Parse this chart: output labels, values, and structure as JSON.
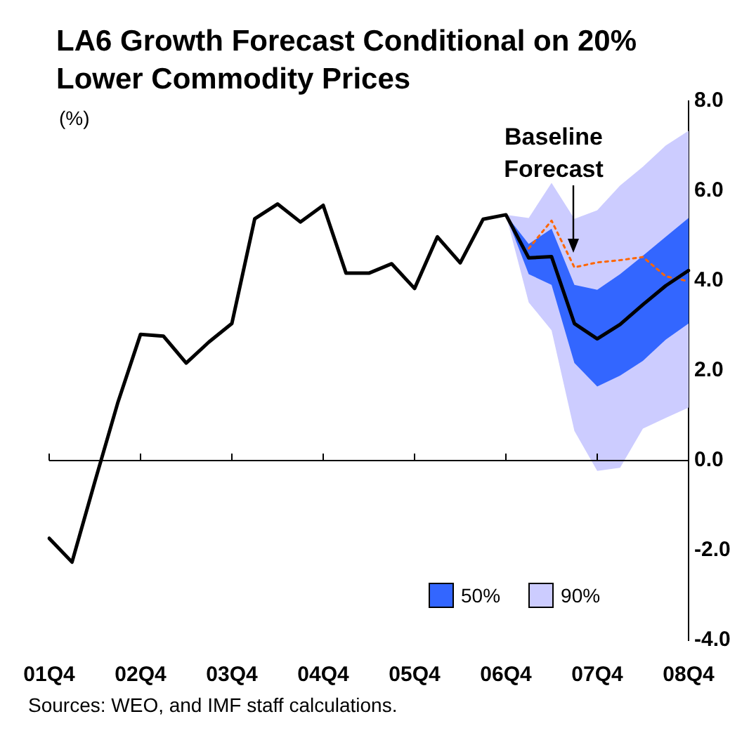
{
  "chart_data": {
    "type": "line",
    "title": "LA6 Growth Forecast Conditional on 20% Lower Commodity Prices",
    "ylabel": "(%)",
    "categories": [
      "01Q4",
      null,
      null,
      null,
      "02Q4",
      null,
      null,
      null,
      "03Q4",
      null,
      null,
      null,
      "04Q4",
      null,
      null,
      null,
      "05Q4",
      null,
      null,
      null,
      "06Q4",
      null,
      null,
      null,
      "07Q4",
      null,
      null,
      null,
      "08Q4"
    ],
    "series": [
      {
        "type": "line",
        "color": "#000000",
        "line_style": "solid",
        "values": [
          -1.73,
          -2.26,
          -0.47,
          1.28,
          2.81,
          2.77,
          2.17,
          2.64,
          3.05,
          5.38,
          5.71,
          5.31,
          5.68,
          4.17,
          4.17,
          4.38,
          3.83,
          4.98,
          4.4,
          5.37,
          5.47,
          4.51,
          4.54,
          3.05,
          2.71,
          3.03,
          3.47,
          3.89,
          4.23
        ]
      },
      {
        "type": "line",
        "color": "#ff6600",
        "line_style": "dotted",
        "values": [
          null,
          null,
          null,
          null,
          null,
          null,
          null,
          null,
          null,
          null,
          null,
          null,
          null,
          null,
          null,
          null,
          null,
          null,
          null,
          null,
          null,
          4.72,
          5.34,
          4.3,
          4.41,
          4.46,
          4.53,
          4.1,
          3.99
        ]
      },
      {
        "type": "area",
        "name": "50%",
        "color": "#3366ff",
        "values": [
          null,
          null,
          null,
          null,
          null,
          null,
          null,
          null,
          null,
          null,
          null,
          null,
          null,
          null,
          null,
          null,
          null,
          null,
          null,
          null,
          null,
          null,
          null,
          null,
          null,
          null,
          null,
          null,
          null
        ],
        "lower": [
          null,
          null,
          null,
          null,
          null,
          null,
          null,
          null,
          null,
          null,
          null,
          null,
          null,
          null,
          null,
          null,
          null,
          null,
          null,
          null,
          5.47,
          4.15,
          3.91,
          2.17,
          1.65,
          1.89,
          2.22,
          2.69,
          3.05
        ],
        "upper": [
          null,
          null,
          null,
          null,
          null,
          null,
          null,
          null,
          null,
          null,
          null,
          null,
          null,
          null,
          null,
          null,
          null,
          null,
          null,
          null,
          5.47,
          4.82,
          5.16,
          3.91,
          3.8,
          4.15,
          4.56,
          4.98,
          5.4
        ]
      },
      {
        "type": "area",
        "name": "90%",
        "color": "#ccccff",
        "values": [
          null,
          null,
          null,
          null,
          null,
          null,
          null,
          null,
          null,
          null,
          null,
          null,
          null,
          null,
          null,
          null,
          null,
          null,
          null,
          null,
          null,
          null,
          null,
          null,
          null,
          null,
          null,
          null,
          null
        ],
        "lower": [
          null,
          null,
          null,
          null,
          null,
          null,
          null,
          null,
          null,
          null,
          null,
          null,
          null,
          null,
          null,
          null,
          null,
          null,
          null,
          null,
          5.47,
          3.52,
          2.9,
          0.66,
          -0.23,
          -0.16,
          0.71,
          0.95,
          1.18
        ],
        "upper": [
          null,
          null,
          null,
          null,
          null,
          null,
          null,
          null,
          null,
          null,
          null,
          null,
          null,
          null,
          null,
          null,
          null,
          null,
          null,
          null,
          5.47,
          5.4,
          6.18,
          5.38,
          5.57,
          6.12,
          6.54,
          7.01,
          7.34
        ]
      }
    ],
    "ylim": [
      -4,
      8
    ],
    "yticks": [
      {
        "value": -4,
        "label": "-4.0"
      },
      {
        "value": -2,
        "label": "-2.0"
      },
      {
        "value": 0,
        "label": "0.0"
      },
      {
        "value": 2,
        "label": "2.0"
      },
      {
        "value": 4,
        "label": "4.0"
      },
      {
        "value": 6,
        "label": "6.0"
      },
      {
        "value": 8,
        "label": "8.0"
      }
    ],
    "grid": false,
    "ref_lines": [
      {
        "axis": "y",
        "value": 0
      }
    ],
    "legend": "bottom",
    "marker": "none",
    "annotations": [
      "Baseline Forecast",
      "Sources: WEO, and IMF staff calculations."
    ]
  }
}
